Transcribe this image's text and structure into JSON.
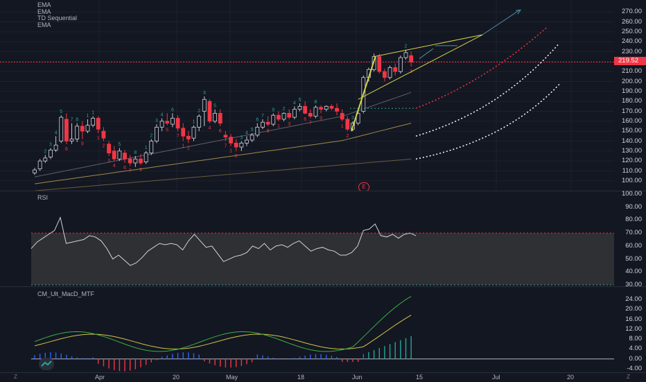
{
  "legend": [
    "EMA",
    "EMA",
    "TD Sequential",
    "EMA"
  ],
  "price_axis": [
    "270.00",
    "260.00",
    "250.00",
    "240.00",
    "230.00",
    "220.00",
    "210.00",
    "200.00",
    "190.00",
    "180.00",
    "170.00",
    "160.00",
    "150.00",
    "140.00",
    "130.00",
    "120.00",
    "110.00",
    "100.00"
  ],
  "current_price": "219.52",
  "earnings_badge": "E",
  "rsi": {
    "title": "RSI",
    "axis": [
      "100.00",
      "90.00",
      "80.00",
      "70.00",
      "60.00",
      "50.00",
      "40.00",
      "30.00"
    ],
    "upper": 70,
    "lower": 30
  },
  "macd": {
    "title": "CM_Ult_MacD_MTF",
    "axis": [
      "24.00",
      "20.00",
      "16.00",
      "12.00",
      "8.00",
      "4.00",
      "0.00",
      "-4.00"
    ]
  },
  "time_axis": [
    "Apr",
    "20",
    "May",
    "18",
    "Jun",
    "15",
    "Jul",
    "20"
  ],
  "corner_left": "Z",
  "corner_right": "Z",
  "colors": {
    "bg": "#131722",
    "up": "#26a69a",
    "down": "#f23645",
    "ema1": "#a08a4a",
    "ema2": "#6b5a3c",
    "ema3": "#5d606b",
    "trend": "#d4d44a",
    "rsi_line": "#d1d4dc",
    "macd_fast": "#3cb043",
    "macd_slow": "#d4c34a"
  },
  "chart_data": {
    "type": "candlestick",
    "ylim": [
      95,
      275
    ],
    "candles": [
      {
        "o": 108,
        "h": 113,
        "l": 106,
        "c": 111,
        "td": "",
        "td_up": true
      },
      {
        "o": 112,
        "h": 122,
        "l": 110,
        "c": 120,
        "td": "",
        "td_up": true
      },
      {
        "o": 120,
        "h": 126,
        "l": 118,
        "c": 123,
        "td": "2",
        "td_up": true
      },
      {
        "o": 124,
        "h": 133,
        "l": 122,
        "c": 131,
        "td": "3",
        "td_up": true
      },
      {
        "o": 131,
        "h": 145,
        "l": 129,
        "c": 136,
        "td": "4",
        "td_up": true
      },
      {
        "o": 140,
        "h": 166,
        "l": 138,
        "c": 164,
        "td": "5",
        "td_up": true
      },
      {
        "o": 162,
        "h": 168,
        "l": 137,
        "c": 140,
        "td": "6",
        "td_up": false
      },
      {
        "o": 140,
        "h": 158,
        "l": 137,
        "c": 142,
        "td": "7",
        "td_up": true
      },
      {
        "o": 142,
        "h": 158,
        "l": 139,
        "c": 155,
        "td": "8",
        "td_up": true
      },
      {
        "o": 155,
        "h": 160,
        "l": 142,
        "c": 150,
        "td": "9",
        "td_up": false
      },
      {
        "o": 150,
        "h": 162,
        "l": 148,
        "c": 156,
        "td": "1",
        "td_up": true
      },
      {
        "o": 156,
        "h": 165,
        "l": 154,
        "c": 163,
        "td": "1",
        "td_up": true
      },
      {
        "o": 163,
        "h": 165,
        "l": 148,
        "c": 152,
        "td": "1",
        "td_up": false
      },
      {
        "o": 150,
        "h": 154,
        "l": 140,
        "c": 143,
        "td": "2",
        "td_up": false
      },
      {
        "o": 137,
        "h": 140,
        "l": 125,
        "c": 128,
        "td": "3",
        "td_up": false
      },
      {
        "o": 130,
        "h": 135,
        "l": 120,
        "c": 122,
        "td": "4",
        "td_up": false
      },
      {
        "o": 122,
        "h": 133,
        "l": 120,
        "c": 130,
        "td": "5",
        "td_up": true
      },
      {
        "o": 128,
        "h": 131,
        "l": 118,
        "c": 122,
        "td": "6",
        "td_up": false
      },
      {
        "o": 122,
        "h": 126,
        "l": 115,
        "c": 118,
        "td": "7",
        "td_up": false
      },
      {
        "o": 118,
        "h": 125,
        "l": 114,
        "c": 122,
        "td": "8",
        "td_up": true
      },
      {
        "o": 122,
        "h": 127,
        "l": 116,
        "c": 118,
        "td": "9",
        "td_up": false
      },
      {
        "o": 119,
        "h": 130,
        "l": 117,
        "c": 128,
        "td": "1",
        "td_up": true
      },
      {
        "o": 128,
        "h": 142,
        "l": 126,
        "c": 140,
        "td": "2",
        "td_up": true
      },
      {
        "o": 140,
        "h": 157,
        "l": 138,
        "c": 154,
        "td": "3",
        "td_up": true
      },
      {
        "o": 154,
        "h": 163,
        "l": 150,
        "c": 160,
        "td": "4",
        "td_up": true
      },
      {
        "o": 160,
        "h": 168,
        "l": 156,
        "c": 158,
        "td": "5",
        "td_up": false
      },
      {
        "o": 157,
        "h": 168,
        "l": 154,
        "c": 163,
        "td": "6",
        "td_up": true
      },
      {
        "o": 163,
        "h": 166,
        "l": 150,
        "c": 153,
        "td": "7",
        "td_up": false
      },
      {
        "o": 153,
        "h": 158,
        "l": 140,
        "c": 145,
        "td": "1",
        "td_up": false
      },
      {
        "o": 145,
        "h": 150,
        "l": 138,
        "c": 142,
        "td": "2",
        "td_up": false
      },
      {
        "o": 143,
        "h": 156,
        "l": 140,
        "c": 154,
        "td": "1",
        "td_up": true
      },
      {
        "o": 154,
        "h": 167,
        "l": 150,
        "c": 165,
        "td": "2",
        "td_up": true
      },
      {
        "o": 170,
        "h": 185,
        "l": 155,
        "c": 182,
        "td": "3",
        "td_up": true
      },
      {
        "o": 180,
        "h": 182,
        "l": 158,
        "c": 160,
        "td": "4",
        "td_up": false
      },
      {
        "o": 160,
        "h": 172,
        "l": 158,
        "c": 168,
        "td": "5",
        "td_up": true
      },
      {
        "o": 168,
        "h": 172,
        "l": 155,
        "c": 158,
        "td": "6",
        "td_up": false
      },
      {
        "o": 146,
        "h": 150,
        "l": 140,
        "c": 144,
        "td": "7",
        "td_up": false
      },
      {
        "o": 144,
        "h": 147,
        "l": 135,
        "c": 138,
        "td": "1",
        "td_up": false
      },
      {
        "o": 138,
        "h": 142,
        "l": 130,
        "c": 134,
        "td": "2",
        "td_up": false
      },
      {
        "o": 134,
        "h": 140,
        "l": 130,
        "c": 138,
        "td": "3",
        "td_up": true
      },
      {
        "o": 138,
        "h": 145,
        "l": 135,
        "c": 141,
        "td": "4",
        "td_up": true
      },
      {
        "o": 141,
        "h": 148,
        "l": 139,
        "c": 146,
        "td": "5",
        "td_up": true
      },
      {
        "o": 146,
        "h": 158,
        "l": 144,
        "c": 154,
        "td": "6",
        "td_up": true
      },
      {
        "o": 154,
        "h": 162,
        "l": 152,
        "c": 159,
        "td": "7",
        "td_up": true
      },
      {
        "o": 159,
        "h": 165,
        "l": 155,
        "c": 157,
        "td": "8",
        "td_up": false
      },
      {
        "o": 157,
        "h": 168,
        "l": 155,
        "c": 166,
        "td": "9",
        "td_up": true
      },
      {
        "o": 166,
        "h": 170,
        "l": 160,
        "c": 162,
        "td": "1",
        "td_up": false
      },
      {
        "o": 162,
        "h": 169,
        "l": 160,
        "c": 168,
        "td": "2",
        "td_up": true
      },
      {
        "o": 168,
        "h": 172,
        "l": 162,
        "c": 164,
        "td": "3",
        "td_up": false
      },
      {
        "o": 164,
        "h": 175,
        "l": 162,
        "c": 172,
        "td": "4",
        "td_up": true
      },
      {
        "o": 172,
        "h": 178,
        "l": 170,
        "c": 175,
        "td": "5",
        "td_up": true
      },
      {
        "o": 175,
        "h": 180,
        "l": 167,
        "c": 168,
        "td": "6",
        "td_up": false
      },
      {
        "o": 168,
        "h": 172,
        "l": 163,
        "c": 165,
        "td": "7",
        "td_up": false
      },
      {
        "o": 165,
        "h": 176,
        "l": 163,
        "c": 174,
        "td": "8",
        "td_up": true
      },
      {
        "o": 174,
        "h": 176,
        "l": 168,
        "c": 172,
        "td": "9",
        "td_up": false
      },
      {
        "o": 172,
        "h": 176,
        "l": 170,
        "c": 175,
        "td": "",
        "td_up": true
      },
      {
        "o": 175,
        "h": 177,
        "l": 171,
        "c": 173,
        "td": "",
        "td_up": false
      },
      {
        "o": 173,
        "h": 178,
        "l": 166,
        "c": 170,
        "td": "",
        "td_up": false
      },
      {
        "o": 168,
        "h": 172,
        "l": 160,
        "c": 162,
        "td": "1",
        "td_up": false
      },
      {
        "o": 162,
        "h": 165,
        "l": 150,
        "c": 152,
        "td": "2",
        "td_up": false
      },
      {
        "o": 152,
        "h": 160,
        "l": 150,
        "c": 158,
        "td": "3",
        "td_up": true
      },
      {
        "o": 158,
        "h": 170,
        "l": 156,
        "c": 168,
        "td": "",
        "td_up": true
      },
      {
        "o": 170,
        "h": 206,
        "l": 168,
        "c": 204,
        "td": "",
        "td_up": true
      },
      {
        "o": 204,
        "h": 214,
        "l": 200,
        "c": 212,
        "td": "",
        "td_up": true
      },
      {
        "o": 212,
        "h": 228,
        "l": 210,
        "c": 225,
        "td": "",
        "td_up": true
      },
      {
        "o": 225,
        "h": 228,
        "l": 208,
        "c": 210,
        "td": "",
        "td_up": false
      },
      {
        "o": 210,
        "h": 213,
        "l": 200,
        "c": 204,
        "td": "",
        "td_up": false
      },
      {
        "o": 204,
        "h": 216,
        "l": 202,
        "c": 214,
        "td": "",
        "td_up": true
      },
      {
        "o": 214,
        "h": 218,
        "l": 206,
        "c": 210,
        "td": "",
        "td_up": false
      },
      {
        "o": 210,
        "h": 226,
        "l": 208,
        "c": 224,
        "td": "",
        "td_up": true
      },
      {
        "o": 224,
        "h": 232,
        "l": 222,
        "c": 229,
        "td": "2",
        "td_up": true
      },
      {
        "o": 226,
        "h": 230,
        "l": 215,
        "c": 219.52,
        "td": "3",
        "td_up": false
      }
    ],
    "rsi_values": [
      58,
      63,
      66,
      69,
      72,
      82,
      62,
      63,
      64,
      65,
      68,
      67,
      64,
      58,
      50,
      53,
      49,
      45,
      47,
      51,
      56,
      59,
      62,
      61,
      62,
      61,
      57,
      64,
      69,
      64,
      59,
      60,
      54,
      48,
      50,
      52,
      53,
      55,
      60,
      58,
      62,
      57,
      60,
      61,
      59,
      62,
      64,
      60,
      56,
      58,
      59,
      57,
      56,
      53,
      53,
      55,
      60,
      72,
      73,
      77,
      68,
      67,
      69,
      66,
      69,
      70,
      68
    ]
  }
}
